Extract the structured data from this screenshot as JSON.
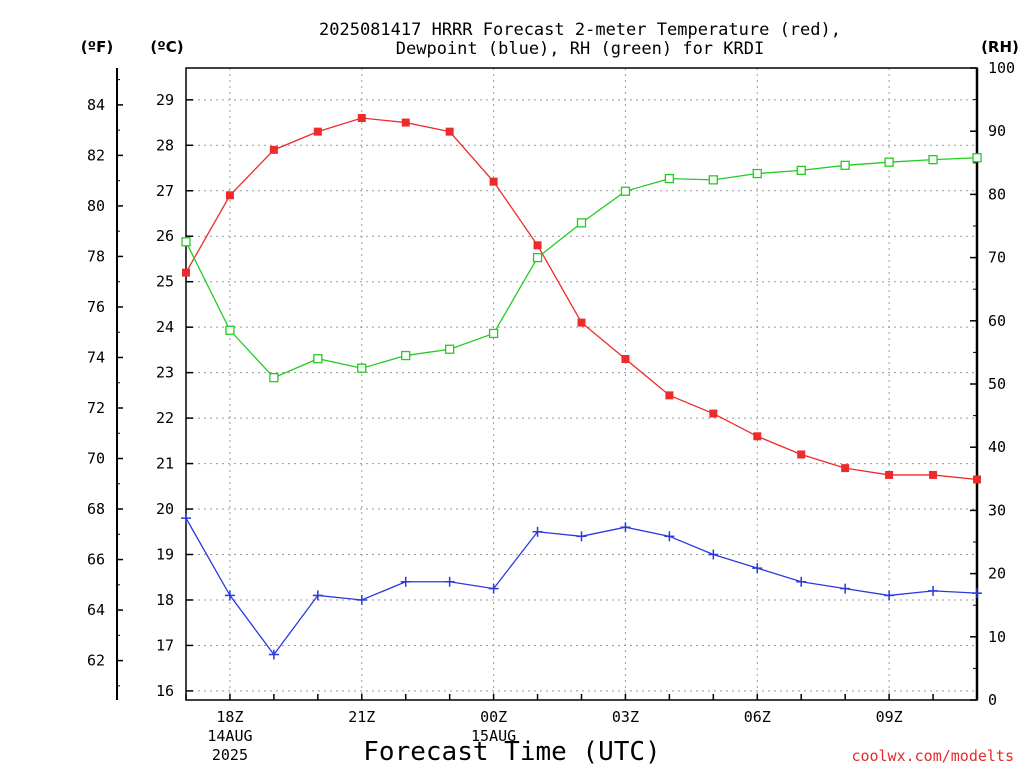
{
  "chart_data": {
    "type": "line",
    "title": "2025081417 HRRR Forecast 2-meter Temperature (red),",
    "subtitle": "Dewpoint (blue), RH (green) for KRDI",
    "xlabel": "Forecast Time (UTC)",
    "credit": "coolwx.com/modelts",
    "left_outer_unit": "(ºF)",
    "left_inner_unit": "(ºC)",
    "right_unit": "(RH)",
    "x": [
      "17Z",
      "18Z",
      "19Z",
      "20Z",
      "21Z",
      "22Z",
      "23Z",
      "00Z",
      "01Z",
      "02Z",
      "03Z",
      "04Z",
      "05Z",
      "06Z",
      "07Z",
      "08Z",
      "09Z",
      "10Z",
      "11Z"
    ],
    "x_tick_labels": [
      {
        "x": "18Z",
        "lines": [
          "18Z",
          "14AUG",
          "2025"
        ]
      },
      {
        "x": "21Z",
        "lines": [
          "21Z"
        ]
      },
      {
        "x": "00Z",
        "lines": [
          "00Z",
          "15AUG"
        ]
      },
      {
        "x": "03Z",
        "lines": [
          "03Z"
        ]
      },
      {
        "x": "06Z",
        "lines": [
          "06Z"
        ]
      },
      {
        "x": "09Z",
        "lines": [
          "09Z"
        ]
      }
    ],
    "ylim_c": [
      15.8,
      29.7
    ],
    "yticks_c": [
      16,
      17,
      18,
      19,
      20,
      21,
      22,
      23,
      24,
      25,
      26,
      27,
      28,
      29
    ],
    "yticks_f": [
      62,
      64,
      66,
      68,
      70,
      72,
      74,
      76,
      78,
      80,
      82,
      84
    ],
    "ylim_rh": [
      0,
      100
    ],
    "yticks_rh": [
      0,
      10,
      20,
      30,
      40,
      50,
      60,
      70,
      80,
      90,
      100
    ],
    "grid": true,
    "series": [
      {
        "name": "Temperature",
        "axis": "c",
        "color": "#ee2b2b",
        "marker": "square-filled",
        "values": [
          25.2,
          26.9,
          27.9,
          28.3,
          28.6,
          28.5,
          28.3,
          27.2,
          25.8,
          24.1,
          23.3,
          22.5,
          22.1,
          21.6,
          21.2,
          20.9,
          20.75,
          20.75,
          20.65
        ]
      },
      {
        "name": "Dewpoint",
        "axis": "c",
        "color": "#2a39e0",
        "marker": "plus",
        "values": [
          19.8,
          18.1,
          16.8,
          18.1,
          18.0,
          18.4,
          18.4,
          18.25,
          19.5,
          19.4,
          19.6,
          19.4,
          19.0,
          18.7,
          18.4,
          18.25,
          18.1,
          18.2,
          18.15
        ]
      },
      {
        "name": "RH",
        "axis": "rh",
        "color": "#22cc22",
        "marker": "square-open",
        "values": [
          72.5,
          58.5,
          51,
          54,
          52.5,
          54.5,
          55.5,
          58,
          70,
          75.5,
          80.5,
          82.5,
          82.3,
          83.3,
          83.8,
          84.6,
          85.1,
          85.5,
          85.8
        ]
      }
    ]
  }
}
